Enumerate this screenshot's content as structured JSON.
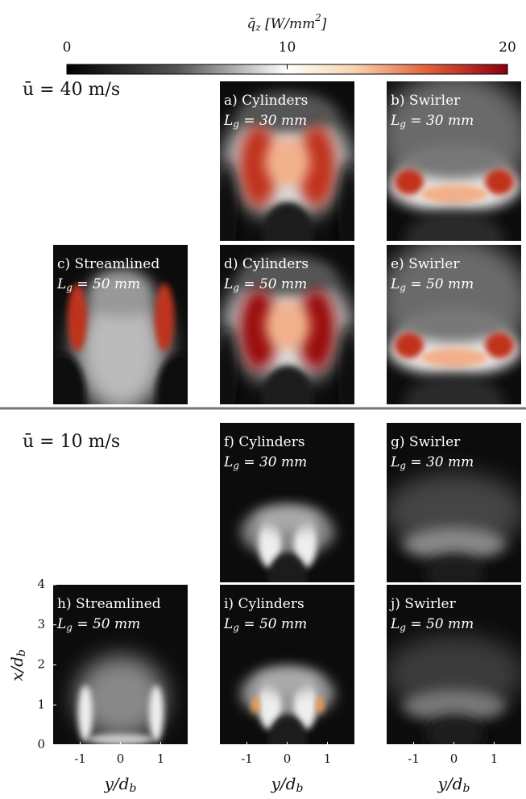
{
  "chart_data": {
    "type": "heatmap-grid",
    "colorbar": {
      "label": "q̄_z [W/mm^2]",
      "lim": [
        0,
        20
      ],
      "ticks": [
        0,
        10,
        20
      ]
    },
    "sections": [
      "ū = 40 m/s",
      "ū = 10 m/s"
    ],
    "panels": [
      {
        "label": "a) Cylinders",
        "lg": "L_g = 30 mm"
      },
      {
        "label": "b) Swirler",
        "lg": "L_g = 30 mm"
      },
      {
        "label": "c) Streamlined",
        "lg": "L_g = 50 mm"
      },
      {
        "label": "d) Cylinders",
        "lg": "L_g = 50 mm"
      },
      {
        "label": "e) Swirler",
        "lg": "L_g = 50 mm"
      },
      {
        "label": "f) Cylinders",
        "lg": "L_g = 30 mm"
      },
      {
        "label": "g) Swirler",
        "lg": "L_g = 30 mm"
      },
      {
        "label": "h) Streamlined",
        "lg": "L_g = 50 mm"
      },
      {
        "label": "i) Cylinders",
        "lg": "L_g = 50 mm"
      },
      {
        "label": "j) Swirler",
        "lg": "L_g = 50 mm"
      }
    ],
    "xlabel": "y/d_b",
    "ylabel": "x/d_b",
    "xlim": [
      -1.67,
      1.67
    ],
    "xticks": [
      -1,
      0,
      1
    ],
    "ylim": [
      0,
      4
    ],
    "yticks": [
      0,
      1,
      2,
      3,
      4
    ]
  }
}
